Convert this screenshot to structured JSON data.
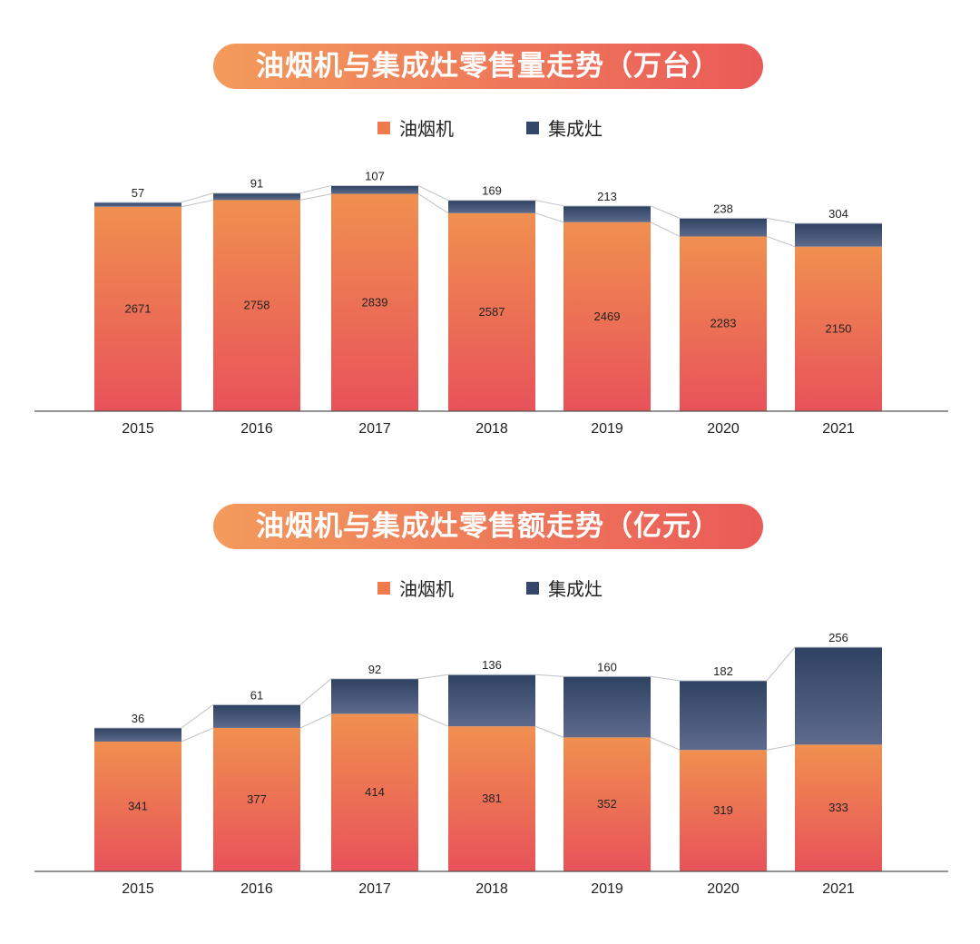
{
  "chart_data": [
    {
      "type": "bar",
      "stacked": true,
      "title": "油烟机与集成灶零售量走势（万台）",
      "categories": [
        "2015",
        "2016",
        "2017",
        "2018",
        "2019",
        "2020",
        "2021"
      ],
      "series": [
        {
          "name": "油烟机",
          "values": [
            2671,
            2758,
            2839,
            2587,
            2469,
            2283,
            2150
          ],
          "color": "#ef8a50"
        },
        {
          "name": "集成灶",
          "values": [
            57,
            91,
            107,
            169,
            213,
            238,
            304
          ],
          "color": "#34466a"
        }
      ],
      "ylim": [
        0,
        3000
      ],
      "grid": false,
      "legend": "top-center"
    },
    {
      "type": "bar",
      "stacked": true,
      "title": "油烟机与集成灶零售额走势（亿元）",
      "categories": [
        "2015",
        "2016",
        "2017",
        "2018",
        "2019",
        "2020",
        "2021"
      ],
      "series": [
        {
          "name": "油烟机",
          "values": [
            341,
            377,
            414,
            381,
            352,
            319,
            333
          ],
          "color": "#ef8a50"
        },
        {
          "name": "集成灶",
          "values": [
            36,
            61,
            92,
            136,
            160,
            182,
            256
          ],
          "color": "#34466a"
        }
      ],
      "ylim": [
        0,
        620
      ],
      "grid": false,
      "legend": "top-center"
    }
  ]
}
